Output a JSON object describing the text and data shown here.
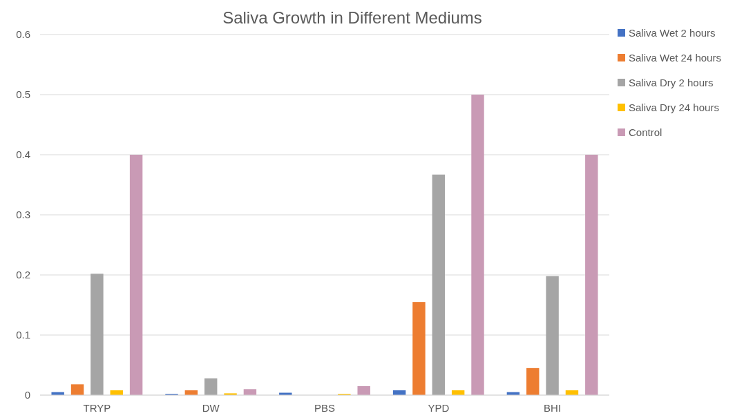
{
  "chart_data": {
    "type": "bar",
    "title": "Saliva Growth in Different Mediums",
    "categories": [
      "TRYP",
      "DW",
      "PBS",
      "YPD",
      "BHI"
    ],
    "series": [
      {
        "name": "Saliva Wet 2 hours",
        "color": "#4472c4",
        "values": [
          0.005,
          0.002,
          0.004,
          0.008,
          0.005
        ]
      },
      {
        "name": "Saliva Wet 24 hours",
        "color": "#ed7d31",
        "values": [
          0.018,
          0.008,
          0,
          0.155,
          0.045
        ]
      },
      {
        "name": "Saliva Dry 2 hours",
        "color": "#a5a5a5",
        "values": [
          0.202,
          0.028,
          null,
          0.367,
          0.198
        ]
      },
      {
        "name": "Saliva Dry 24 hours",
        "color": "#ffc000",
        "values": [
          0.008,
          0.003,
          0.002,
          0.008,
          0.008
        ]
      },
      {
        "name": "Control",
        "color": "#c99ab5",
        "values": [
          0.4,
          0.01,
          0.015,
          0.5,
          0.4
        ]
      }
    ],
    "ylim": [
      0,
      0.6
    ],
    "yticks": [
      0,
      0.1,
      0.2,
      0.3,
      0.4,
      0.5,
      0.6
    ],
    "grid": "y",
    "legend": "right"
  }
}
